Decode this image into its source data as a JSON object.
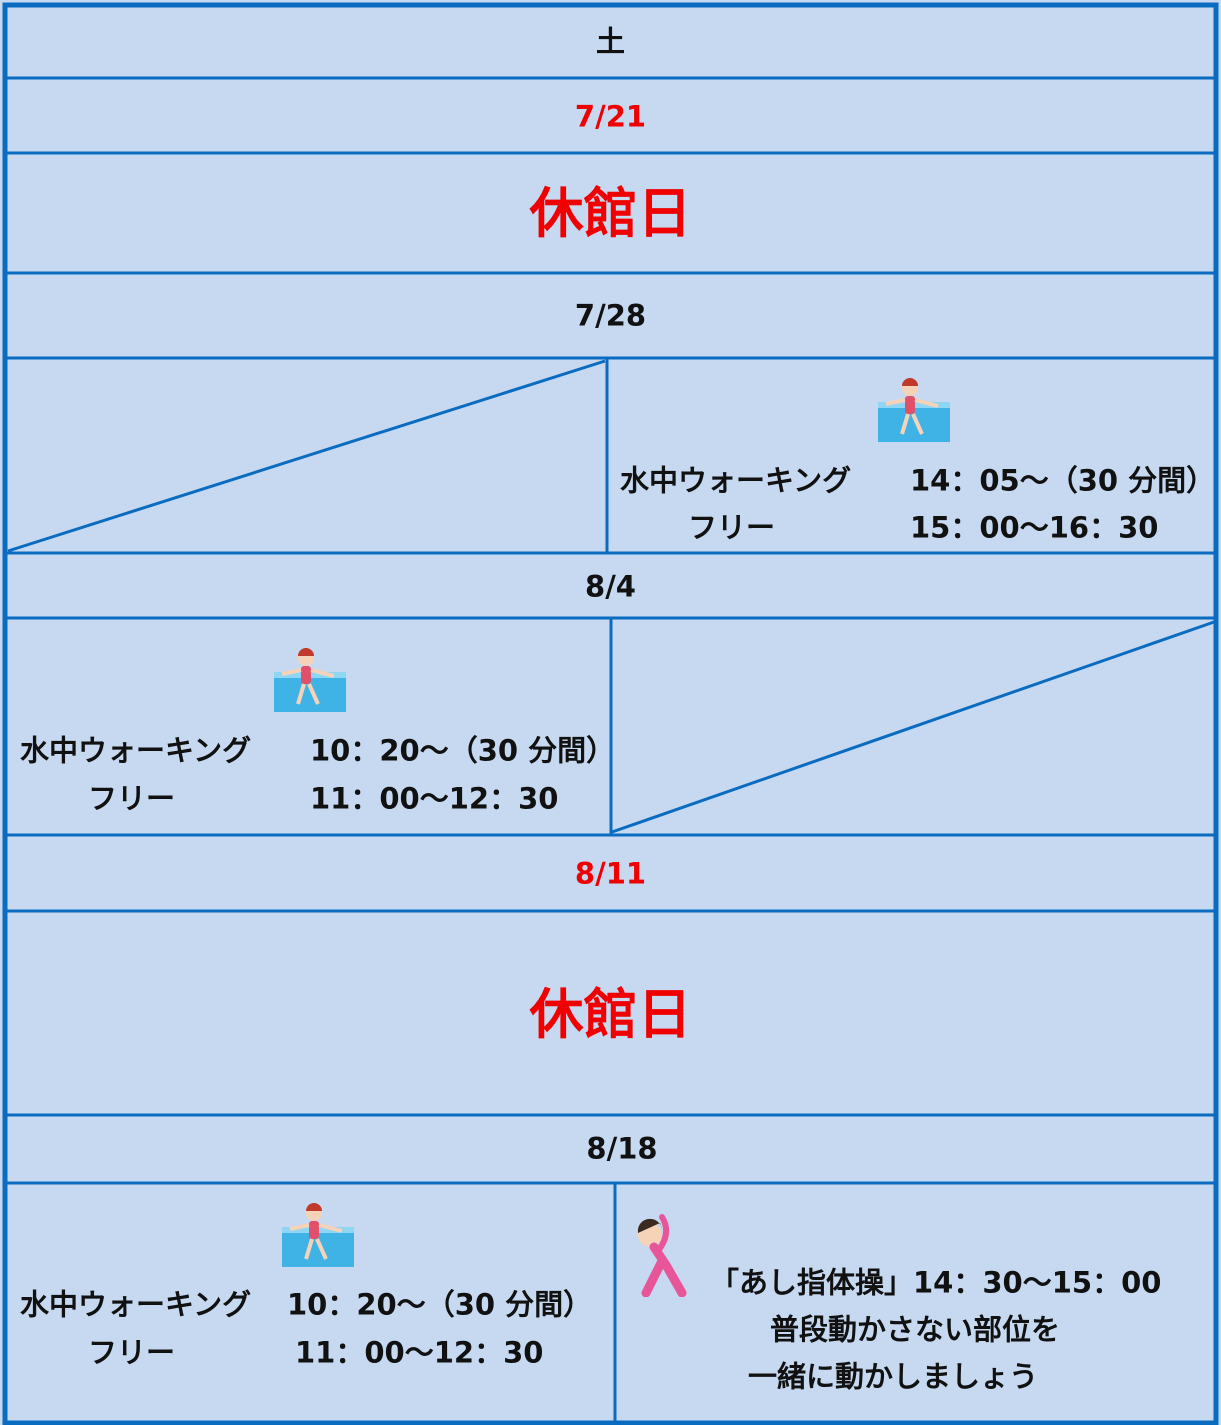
{
  "table": {
    "header": "土",
    "weeks": [
      {
        "date": "7/21",
        "status": "休館日"
      },
      {
        "date": "7/28",
        "right": [
          [
            "水中ウォーキング",
            "14：05～（30 分間）"
          ],
          [
            "フリー",
            "15：00～16：30"
          ]
        ]
      },
      {
        "date": "8/4",
        "left": [
          [
            "水中ウォーキング",
            "10：20～（30 分間）"
          ],
          [
            "フリー",
            "11：00～12：30"
          ]
        ]
      },
      {
        "date": "8/11",
        "status": "休館日"
      },
      {
        "date": "8/18",
        "left": [
          [
            "水中ウォーキング",
            "10：20～（30 分間）"
          ],
          [
            "フリー",
            "11：00～12：30"
          ]
        ],
        "right": [
          "「あし指体操」14：30～15：00",
          "普段動かさない部位を",
          "一緒に動かしましょう"
        ]
      }
    ]
  }
}
